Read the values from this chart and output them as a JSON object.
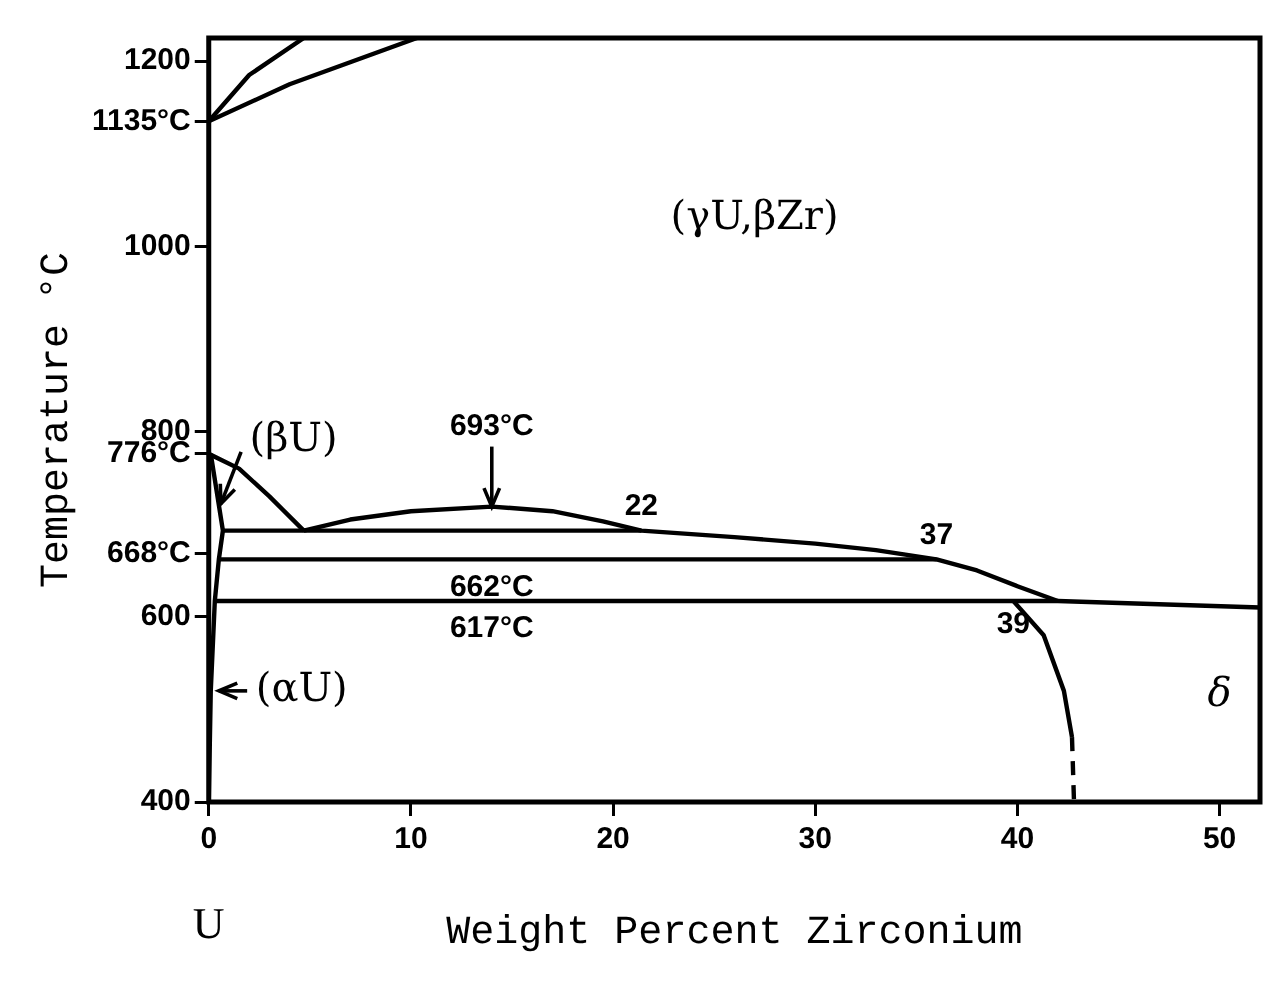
{
  "chart_data": {
    "type": "line",
    "xlabel": "Weight Percent Zirconium",
    "ylabel": "Temperature °C",
    "marker": "none",
    "grid": false,
    "legend": false,
    "xlim": [
      0,
      52
    ],
    "xticks": [
      0,
      10,
      20,
      30,
      40,
      50
    ],
    "ylim": [
      400,
      1225
    ],
    "yticks": [
      400,
      600,
      {
        "value": 668,
        "label": "668°C"
      },
      {
        "value": 776,
        "label": "776°C"
      },
      800,
      1000,
      {
        "value": 1135,
        "label": "1135°C"
      },
      1200
    ],
    "series": [
      {
        "color": "#000000",
        "x": [
          0,
          2,
          4.7
        ],
        "values": [
          1135,
          1185,
          1225
        ]
      },
      {
        "color": "#000000",
        "x": [
          0,
          4,
          10.3
        ],
        "values": [
          1135,
          1175,
          1225
        ]
      },
      {
        "color": "#000000",
        "x": [
          0,
          1.5,
          3,
          4.7
        ],
        "values": [
          776,
          760,
          730,
          693
        ]
      },
      {
        "color": "#000000",
        "x": [
          4.7,
          7,
          10,
          14,
          17,
          19.5,
          21.4,
          26,
          30,
          33,
          36,
          38,
          40,
          42
        ],
        "values": [
          693,
          705,
          714,
          719,
          714,
          703,
          693,
          686,
          679,
          672,
          662,
          650,
          633,
          617
        ]
      },
      {
        "color": "#000000",
        "x": [
          0.7,
          21.4
        ],
        "values": [
          693,
          693
        ]
      },
      {
        "color": "#000000",
        "x": [
          0.5,
          36
        ],
        "values": [
          662,
          662
        ]
      },
      {
        "color": "#000000",
        "x": [
          0.3,
          42,
          52
        ],
        "values": [
          617,
          617,
          610
        ]
      },
      {
        "color": "#000000",
        "x": [
          0.1,
          0.7,
          0.5,
          0.3,
          0.1,
          0
        ],
        "values": [
          776,
          693,
          662,
          617,
          520,
          400
        ]
      },
      {
        "color": "#000000",
        "x": [
          39.8,
          41.3,
          42.3,
          42.7
        ],
        "values": [
          617,
          580,
          520,
          470
        ]
      },
      {
        "color": "#000000",
        "x": [
          42.7,
          42.8
        ],
        "values": [
          470,
          400
        ],
        "line_style": "dashed"
      }
    ],
    "annotations": [
      {
        "text": "693°C",
        "x": 14,
        "y": 719
      },
      {
        "text": "662°C",
        "x": 14,
        "y": 662
      },
      {
        "text": "617°C",
        "x": 14,
        "y": 617
      },
      {
        "text": "22",
        "x": 21.4,
        "y": 693
      },
      {
        "text": "37",
        "x": 36,
        "y": 662
      },
      {
        "text": "39",
        "x": 39.8,
        "y": 617
      },
      "(γU,βZr)",
      "(βU)",
      "(αU)",
      "δ",
      "U"
    ]
  }
}
